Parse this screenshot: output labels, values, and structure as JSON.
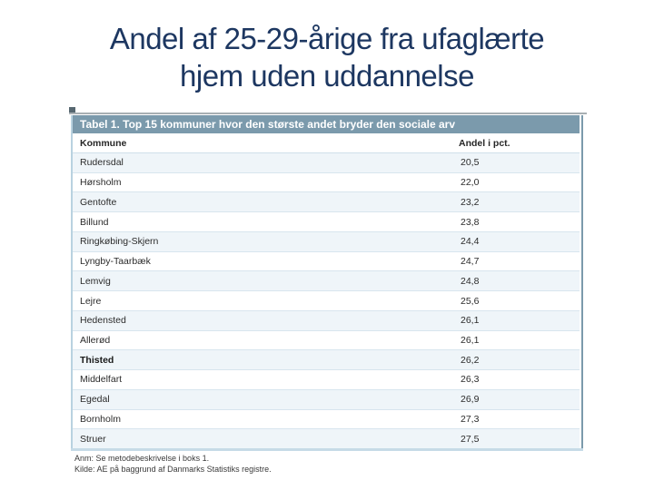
{
  "slide": {
    "title_line1": "Andel af 25-29-årige fra ufaglærte",
    "title_line2": "hjem uden uddannelse"
  },
  "table": {
    "caption": "Tabel 1. Top 15 kommuner hvor den største andet bryder den sociale arv",
    "columns": [
      "Kommune",
      "Andel i pct."
    ],
    "rows": [
      {
        "kommune": "Rudersdal",
        "andel": "20,5"
      },
      {
        "kommune": "Hørsholm",
        "andel": "22,0"
      },
      {
        "kommune": "Gentofte",
        "andel": "23,2"
      },
      {
        "kommune": "Billund",
        "andel": "23,8"
      },
      {
        "kommune": "Ringkøbing-Skjern",
        "andel": "24,4"
      },
      {
        "kommune": "Lyngby-Taarbæk",
        "andel": "24,7"
      },
      {
        "kommune": "Lemvig",
        "andel": "24,8"
      },
      {
        "kommune": "Lejre",
        "andel": "25,6"
      },
      {
        "kommune": "Hedensted",
        "andel": "26,1"
      },
      {
        "kommune": "Allerød",
        "andel": "26,1"
      },
      {
        "kommune": "Thisted",
        "andel": "26,2",
        "bold": true
      },
      {
        "kommune": "Middelfart",
        "andel": "26,3"
      },
      {
        "kommune": "Egedal",
        "andel": "26,9"
      },
      {
        "kommune": "Bornholm",
        "andel": "27,3"
      },
      {
        "kommune": "Struer",
        "andel": "27,5"
      }
    ],
    "note": "Anm: Se metodebeskrivelse i boks 1.",
    "source": "Kilde: AE på baggrund af Danmarks Statistiks registre."
  },
  "colors": {
    "title_text": "#1d3761",
    "caption_bar_bg": "#7b9aac",
    "caption_bar_text": "#ffffff",
    "row_alt_bg": "#eff5f9",
    "row_separator": "#d8e5ee",
    "left_border": "#b9d2e0",
    "right_border": "#7b9aac",
    "bottom_border": "#c6dbe7"
  }
}
